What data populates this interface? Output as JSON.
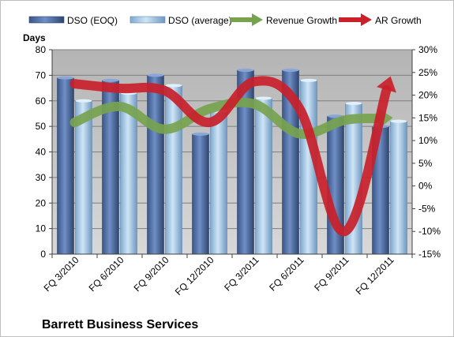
{
  "chart_data": {
    "type": "bar",
    "title": "Barrett Business Services",
    "ylabel": "Days",
    "ylim": [
      0,
      80
    ],
    "y_ticks": [
      0,
      10,
      20,
      30,
      40,
      50,
      60,
      70,
      80
    ],
    "y2lim": [
      -15,
      30
    ],
    "y2_ticks": [
      "-15%",
      "-10%",
      "-5%",
      "0%",
      "5%",
      "10%",
      "15%",
      "20%",
      "25%",
      "30%"
    ],
    "categories": [
      "FQ 3/2010",
      "FQ 6/2010",
      "FQ 9/2010",
      "FQ 12/2010",
      "FQ 3/2011",
      "FQ 6/2011",
      "FQ 9/2011",
      "FQ 12/2011"
    ],
    "legend_position": "top",
    "grid": true,
    "series": [
      {
        "name": "DSO (EOQ)",
        "type": "bar",
        "axis": "left",
        "color": "#4f6fa8",
        "values": [
          69,
          68,
          70,
          47,
          72,
          72,
          54,
          50
        ]
      },
      {
        "name": "DSO (average)",
        "type": "bar",
        "axis": "left",
        "color": "#a9cde9",
        "values": [
          60,
          63,
          66,
          56,
          61,
          68,
          59,
          52
        ]
      },
      {
        "name": "Revenue Growth",
        "type": "line",
        "axis": "right",
        "unit": "%",
        "color": "#77a34f",
        "values": [
          14,
          17.5,
          12.5,
          17,
          18,
          11.5,
          14.5,
          15
        ]
      },
      {
        "name": "AR Growth",
        "type": "line",
        "axis": "right",
        "unit": "%",
        "color": "#c9202a",
        "values": [
          22.5,
          21.5,
          21,
          14,
          23,
          17,
          -10,
          23.5
        ]
      }
    ]
  },
  "colors": {
    "plot_background": "#c0c0c0",
    "gridline": "#7f7f7f"
  }
}
